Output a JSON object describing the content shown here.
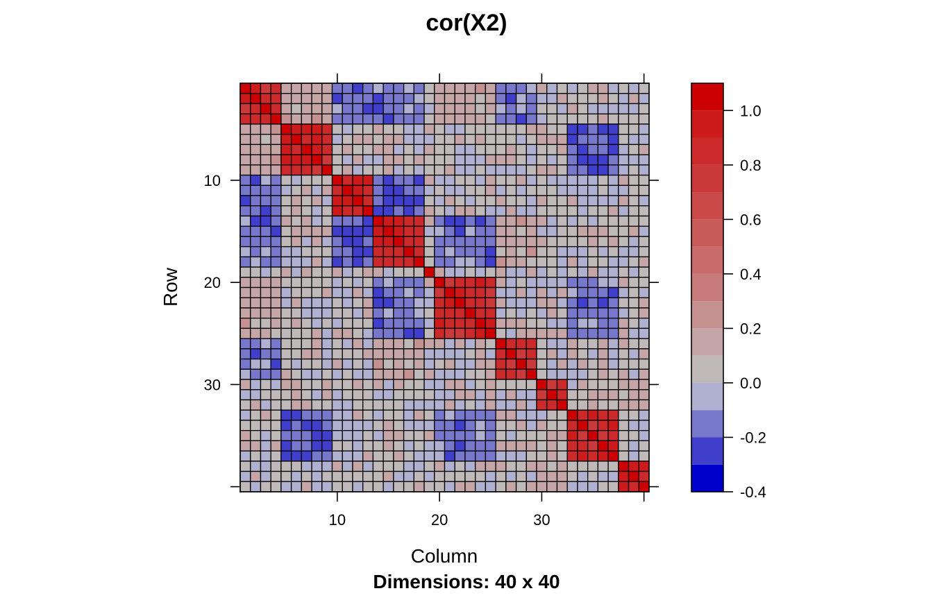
{
  "chart_data": {
    "type": "heatmap",
    "title": "cor(X2)",
    "xlabel": "Column",
    "ylabel": "Row",
    "sub": "Dimensions: 40 x 40",
    "nrow": 40,
    "ncol": 40,
    "x_ticks": [
      10,
      20,
      30
    ],
    "y_ticks": [
      10,
      20,
      30
    ],
    "zlim": [
      -0.4,
      1.1
    ],
    "color_breaks": [
      -0.4,
      -0.3,
      -0.2,
      -0.1,
      0.0,
      0.1,
      0.2,
      0.3,
      0.4,
      0.5,
      0.6,
      0.7,
      0.8,
      0.9,
      1.0,
      1.1
    ],
    "colors": [
      "#0000cc",
      "#3f3fcc",
      "#7777cc",
      "#b0b0d0",
      "#c0b9b9",
      "#c5a5a5",
      "#c59090",
      "#c77b7b",
      "#c86a6a",
      "#c95a5a",
      "#ca4a4a",
      "#cb3a3a",
      "#cc2a2a",
      "#cd1a1a",
      "#cc0000"
    ],
    "colorkey_ticks": [
      "1.0",
      "0.8",
      "0.6",
      "0.4",
      "0.2",
      "0.0",
      "-0.2",
      "-0.4"
    ],
    "colorkey_tick_values": [
      1.0,
      0.8,
      0.6,
      0.4,
      0.2,
      0.0,
      -0.2,
      -0.4
    ],
    "blocks": [
      [
        1,
        4
      ],
      [
        5,
        9
      ],
      [
        10,
        13
      ],
      [
        14,
        18
      ],
      [
        19,
        19
      ],
      [
        20,
        25
      ],
      [
        26,
        29
      ],
      [
        30,
        32
      ],
      [
        33,
        37
      ],
      [
        38,
        40
      ]
    ],
    "negative_blocks": [
      {
        "rows": [
          1,
          4
        ],
        "cols": [
          10,
          18
        ],
        "value": -0.15
      },
      {
        "rows": [
          5,
          9
        ],
        "cols": [
          33,
          37
        ],
        "value": -0.2
      },
      {
        "rows": [
          10,
          13
        ],
        "cols": [
          14,
          18
        ],
        "value": -0.2
      },
      {
        "rows": [
          14,
          18
        ],
        "cols": [
          10,
          13
        ],
        "value": -0.2
      },
      {
        "rows": [
          14,
          18
        ],
        "cols": [
          1,
          4
        ],
        "value": -0.15
      },
      {
        "rows": [
          14,
          18
        ],
        "cols": [
          20,
          25
        ],
        "value": -0.15
      },
      {
        "rows": [
          20,
          25
        ],
        "cols": [
          14,
          18
        ],
        "value": -0.15
      },
      {
        "rows": [
          20,
          25
        ],
        "cols": [
          33,
          37
        ],
        "value": -0.15
      },
      {
        "rows": [
          26,
          29
        ],
        "cols": [
          1,
          4
        ],
        "value": -0.15
      },
      {
        "rows": [
          33,
          37
        ],
        "cols": [
          5,
          9
        ],
        "value": -0.2
      },
      {
        "rows": [
          33,
          37
        ],
        "cols": [
          20,
          25
        ],
        "value": -0.15
      }
    ],
    "positive_blocks": [
      {
        "rows": [
          1,
          4
        ],
        "cols": [
          5,
          9
        ],
        "value": 0.15
      },
      {
        "rows": [
          5,
          9
        ],
        "cols": [
          1,
          4
        ],
        "value": 0.15
      },
      {
        "rows": [
          14,
          18
        ],
        "cols": [
          26,
          29
        ],
        "value": 0.15
      },
      {
        "rows": [
          20,
          25
        ],
        "cols": [
          1,
          4
        ],
        "value": 0.15
      },
      {
        "rows": [
          26,
          29
        ],
        "cols": [
          14,
          18
        ],
        "value": 0.15
      },
      {
        "rows": [
          30,
          32
        ],
        "cols": [
          38,
          40
        ],
        "value": 0.15
      },
      {
        "rows": [
          38,
          40
        ],
        "cols": [
          30,
          32
        ],
        "value": 0.15
      }
    ]
  }
}
